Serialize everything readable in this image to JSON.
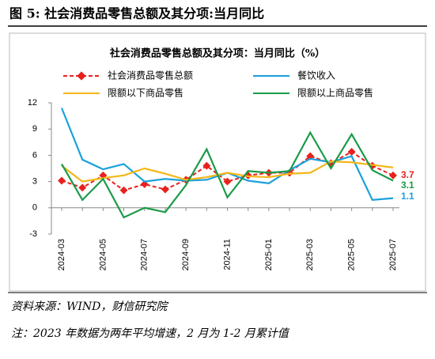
{
  "header": {
    "title": "图 5: 社会消费品零售总额及其分项:当月同比"
  },
  "chart_data": {
    "type": "line",
    "title": "社会消费品零售总额及其分项：当月同比（%）",
    "categories": [
      "2024-03",
      null,
      "2024-05",
      null,
      "2024-07",
      null,
      "2024-09",
      null,
      "2024-11",
      null,
      "2025-01",
      null,
      "2025-03",
      null,
      "2025-05",
      null,
      "2025-07"
    ],
    "series": [
      {
        "name": "社会消费品零售总额",
        "color": "#e8211d",
        "values": [
          3.1,
          2.3,
          3.7,
          2.0,
          2.7,
          2.1,
          3.2,
          4.8,
          3.0,
          3.7,
          4.0,
          4.0,
          5.9,
          5.1,
          6.4,
          4.8,
          3.7
        ]
      },
      {
        "name": "餐饮收入",
        "color": "#1ba1dc",
        "values": [
          11.4,
          5.5,
          4.4,
          5.0,
          3.0,
          3.3,
          3.1,
          3.2,
          4.0,
          3.1,
          2.8,
          4.3,
          5.6,
          5.2,
          5.9,
          0.9,
          1.1
        ]
      },
      {
        "name": "限额以下商品零售",
        "color": "#f5b617",
        "values": [
          4.8,
          3.0,
          3.4,
          3.7,
          4.5,
          3.9,
          3.2,
          3.5,
          4.0,
          3.6,
          3.5,
          3.9,
          4.0,
          5.3,
          5.2,
          4.9,
          4.6
        ]
      },
      {
        "name": "限额以上商品零售",
        "color": "#1a9b48",
        "values": [
          5.0,
          0.9,
          3.3,
          -1.1,
          0.0,
          -0.5,
          2.6,
          6.7,
          1.2,
          4.2,
          4.0,
          4.2,
          8.6,
          4.5,
          8.4,
          4.3,
          3.1
        ]
      }
    ],
    "ylim": [
      -3,
      12
    ],
    "yticks": [
      -3,
      0,
      3,
      6,
      9,
      12
    ],
    "grid": false
  },
  "footer": {
    "source": "资料来源：WIND，财信研究院",
    "note": "注：2023 年数据为两年平均增速，2 月为 1-2 月累计值"
  }
}
